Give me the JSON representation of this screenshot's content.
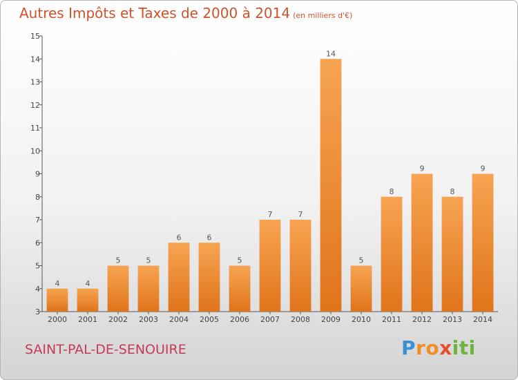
{
  "chart_data": {
    "type": "bar",
    "title": "Autres Impôts et Taxes de 2000 à 2014",
    "subtitle": "(en milliers d'€)",
    "xlabel": "",
    "ylabel": "",
    "categories": [
      "2000",
      "2001",
      "2002",
      "2003",
      "2004",
      "2005",
      "2006",
      "2007",
      "2008",
      "2009",
      "2010",
      "2011",
      "2012",
      "2013",
      "2014"
    ],
    "values": [
      4,
      4,
      5,
      5,
      6,
      6,
      5,
      7,
      7,
      14,
      5,
      8,
      9,
      8,
      9
    ],
    "ylim": [
      3,
      15
    ],
    "yticks": [
      "3",
      "4",
      "5",
      "6",
      "7",
      "8",
      "9",
      "10",
      "11",
      "12",
      "13",
      "14",
      "15"
    ],
    "grid": false,
    "bar_color": "#f0892f"
  },
  "location": "SAINT-PAL-DE-SENOUIRE",
  "brand": {
    "letters": [
      "P",
      "r",
      "o",
      "x",
      "i",
      "t",
      "i"
    ],
    "colors": [
      "#3a8fd6",
      "#f28c28",
      "#f28c28",
      "#e84e2e",
      "#6cb33f",
      "#6cb33f",
      "#6cb33f"
    ]
  }
}
